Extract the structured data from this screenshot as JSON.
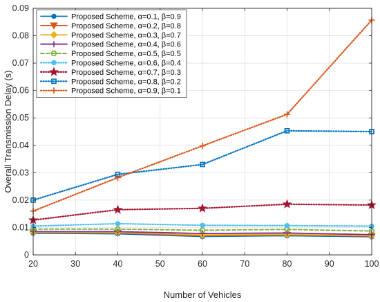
{
  "chart_data": {
    "type": "line",
    "title": "",
    "xlabel": "Number of Vehicles",
    "ylabel": "Overall Transmission Delay (s)",
    "x": [
      20,
      40,
      60,
      80,
      100
    ],
    "xlim": [
      20,
      100
    ],
    "ylim": [
      0,
      0.09
    ],
    "xticks": [
      "20",
      "30",
      "40",
      "50",
      "60",
      "70",
      "80",
      "90",
      "100"
    ],
    "yticks": [
      "0",
      "0.01",
      "0.02",
      "0.03",
      "0.04",
      "0.05",
      "0.06",
      "0.07",
      "0.08",
      "0.09"
    ],
    "grid": true,
    "legend_position": "top-left",
    "series": [
      {
        "name": "Proposed Scheme, α=0.1, β=0.9",
        "color": "#0072BD",
        "dash": "solid",
        "marker": "circle",
        "values": [
          0.0079,
          0.0077,
          0.0067,
          0.007,
          0.0066
        ]
      },
      {
        "name": "Proposed Scheme, α=0.2, β=0.8",
        "color": "#D95319",
        "dash": "solid",
        "marker": "triangle-down",
        "values": [
          0.0082,
          0.008,
          0.007,
          0.0073,
          0.0068
        ]
      },
      {
        "name": "Proposed Scheme, α=0.3, β=0.7",
        "color": "#EDB120",
        "dash": "solid",
        "marker": "diamond",
        "values": [
          0.0083,
          0.0082,
          0.0073,
          0.0075,
          0.007
        ]
      },
      {
        "name": "Proposed Scheme, α=0.4, β=0.6",
        "color": "#7E2F8E",
        "dash": "solid",
        "marker": "plus",
        "values": [
          0.0085,
          0.0085,
          0.0078,
          0.008,
          0.0074
        ]
      },
      {
        "name": "Proposed Scheme, α=0.5, β=0.5",
        "color": "#77AC30",
        "dash": "dashed",
        "marker": "circle-open",
        "values": [
          0.0094,
          0.0094,
          0.009,
          0.0093,
          0.0087
        ]
      },
      {
        "name": "Proposed Scheme, α=0.6, β=0.4",
        "color": "#4DBEEE",
        "dash": "dotted",
        "marker": "circle",
        "values": [
          0.0105,
          0.0114,
          0.0108,
          0.0107,
          0.0105
        ]
      },
      {
        "name": "Proposed Scheme, α=0.7, β=0.3",
        "color": "#A2142F",
        "dash": "dotted",
        "marker": "star",
        "values": [
          0.0127,
          0.0165,
          0.017,
          0.0185,
          0.0182
        ]
      },
      {
        "name": "Proposed Scheme, α=0.8, β=0.2",
        "color": "#0072BD",
        "dash": "dotted",
        "marker": "square-open",
        "values": [
          0.02,
          0.0294,
          0.033,
          0.0453,
          0.045
        ]
      },
      {
        "name": "Proposed Scheme, α=0.9, β=0.1",
        "color": "#D95319",
        "dash": "dotted",
        "marker": "plus",
        "values": [
          0.016,
          0.0282,
          0.0398,
          0.0513,
          0.0857
        ]
      }
    ]
  }
}
